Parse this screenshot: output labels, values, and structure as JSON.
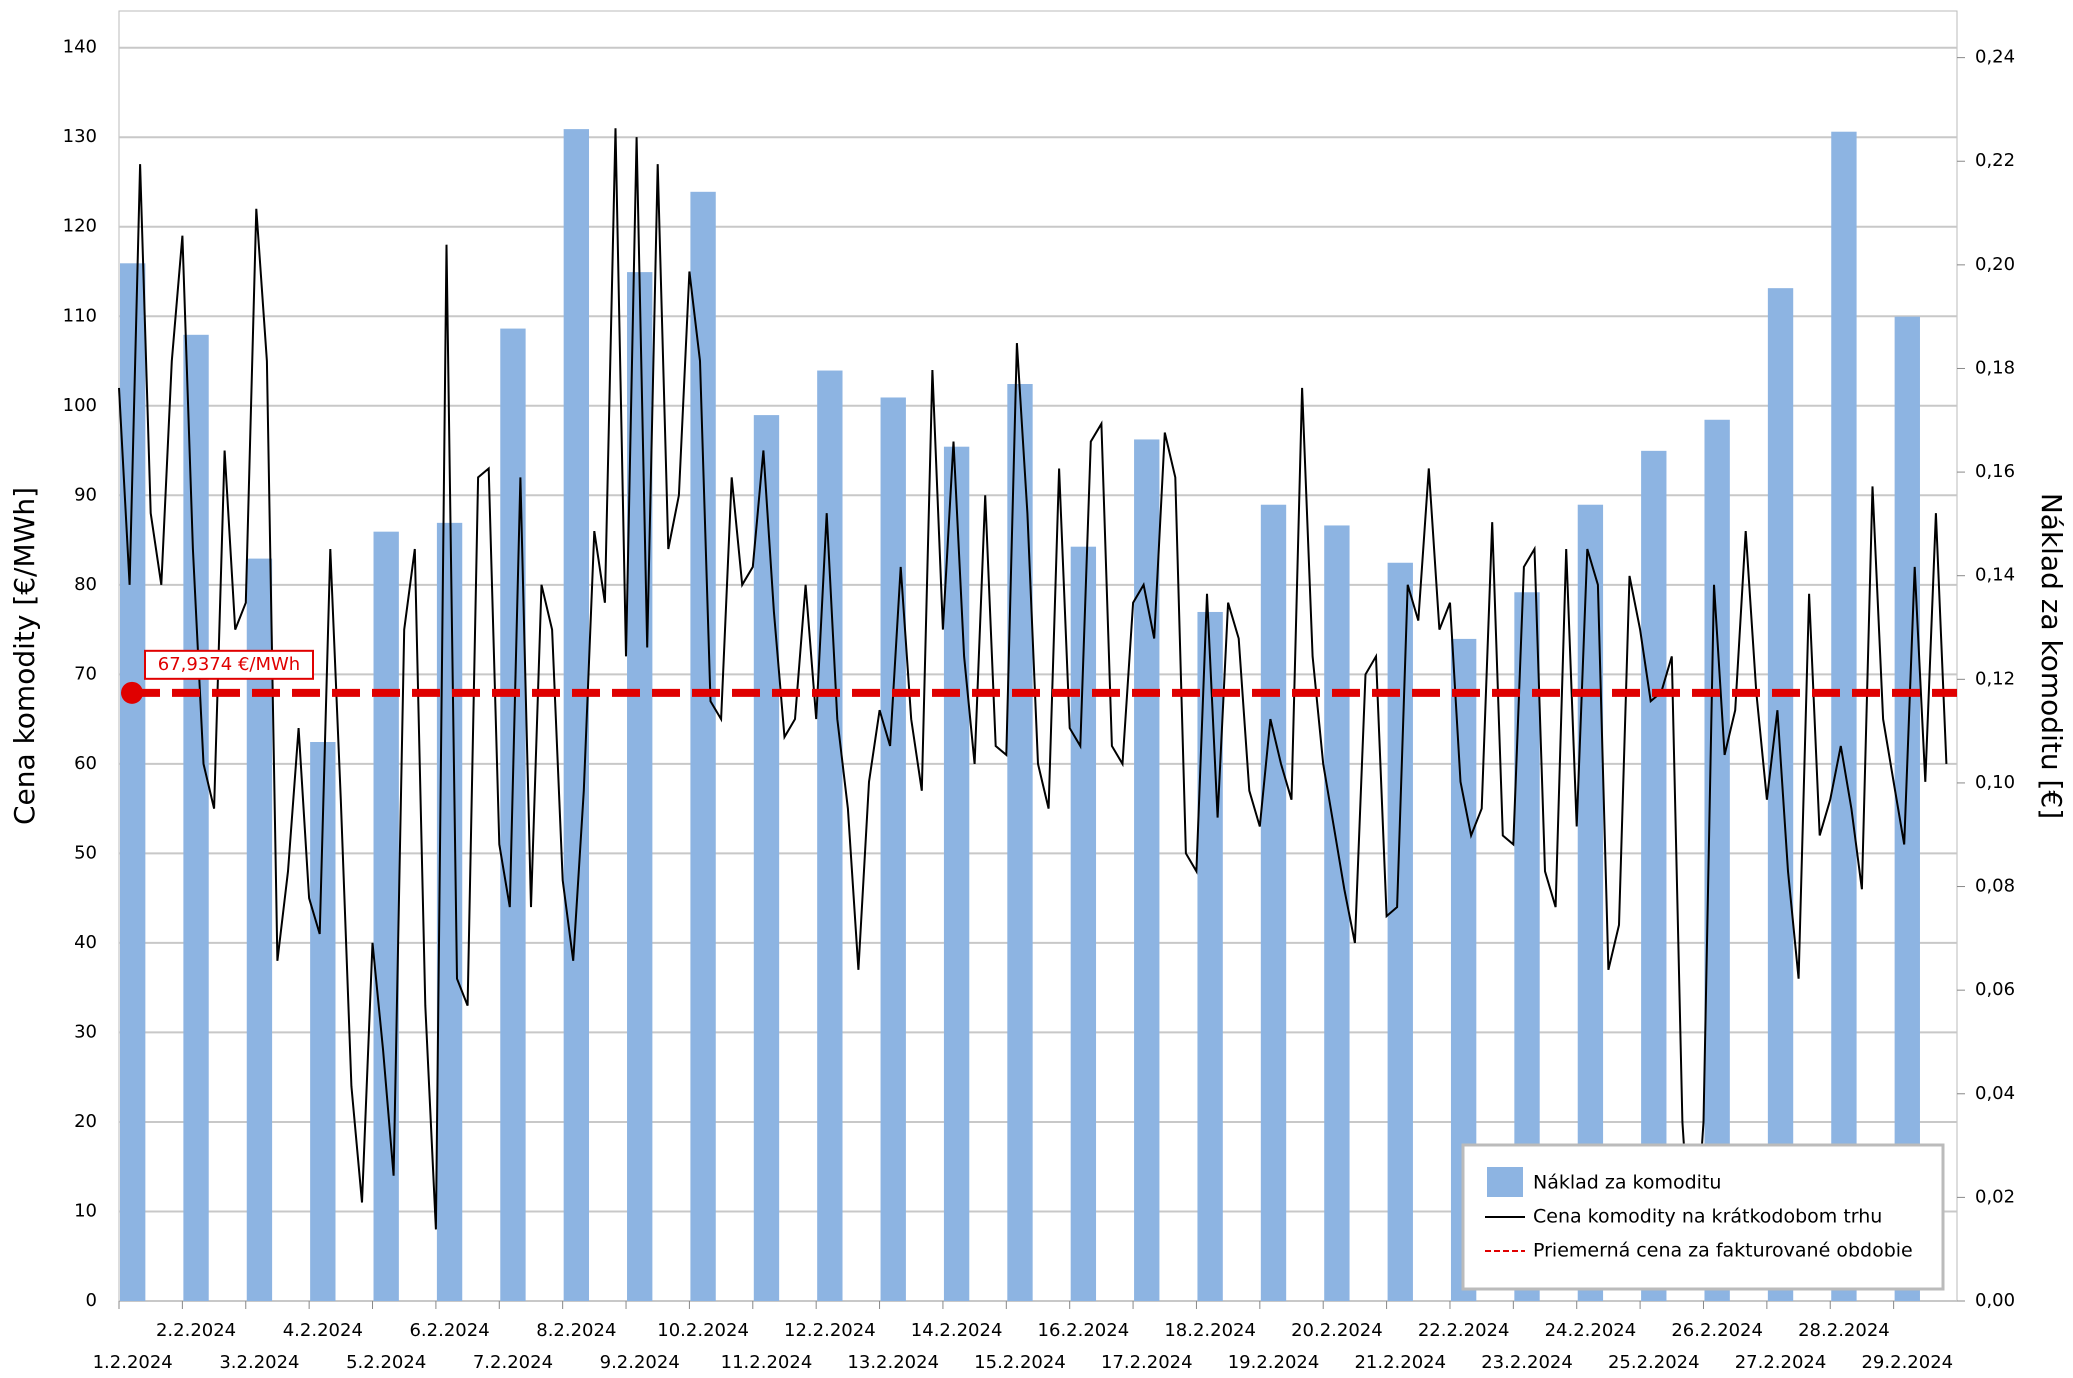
{
  "chart_data": {
    "type": "bar",
    "y_label": "Cena komodity [€/MWh]",
    "y2_label": "Náklad za komoditu [€]",
    "categories": [
      "1.2.2024",
      "2.2.2024",
      "3.2.2024",
      "4.2.2024",
      "5.2.2024",
      "6.2.2024",
      "7.2.2024",
      "8.2.2024",
      "9.2.2024",
      "10.2.2024",
      "11.2.2024",
      "12.2.2024",
      "13.2.2024",
      "14.2.2024",
      "15.2.2024",
      "16.2.2024",
      "17.2.2024",
      "18.2.2024",
      "19.2.2024",
      "20.2.2024",
      "21.2.2024",
      "22.2.2024",
      "23.2.2024",
      "24.2.2024",
      "25.2.2024",
      "26.2.2024",
      "27.2.2024",
      "28.2.2024",
      "29.2.2024"
    ],
    "ylim": [
      0,
      144.1
    ],
    "yticks": [
      0,
      10,
      20,
      30,
      40,
      50,
      60,
      70,
      80,
      90,
      100,
      110,
      120,
      130,
      140
    ],
    "y2lim": [
      0,
      0.249
    ],
    "y2ticks": [
      {
        "value": 0,
        "label": "0,00"
      },
      {
        "value": 0.02,
        "label": "0,02"
      },
      {
        "value": 0.04,
        "label": "0,04"
      },
      {
        "value": 0.06,
        "label": "0,06"
      },
      {
        "value": 0.08,
        "label": "0,08"
      },
      {
        "value": 0.1,
        "label": "0,10"
      },
      {
        "value": 0.12,
        "label": "0,12"
      },
      {
        "value": 0.14,
        "label": "0,14"
      },
      {
        "value": 0.16,
        "label": "0,16"
      },
      {
        "value": 0.18,
        "label": "0,18"
      },
      {
        "value": 0.2,
        "label": "0,20"
      },
      {
        "value": 0.22,
        "label": "0,22"
      },
      {
        "value": 0.24,
        "label": "0,24"
      }
    ],
    "grid": true,
    "legend": "bottom-right",
    "series": [
      {
        "name": "Náklad za komoditu",
        "color": "#8db4e2",
        "axis": "y2",
        "values": [
          0.2003,
          0.1865,
          0.1433,
          0.1079,
          0.1485,
          0.1502,
          0.1877,
          0.2262,
          0.1986,
          0.2141,
          0.171,
          0.1796,
          0.1744,
          0.1649,
          0.177,
          0.1456,
          0.1663,
          0.133,
          0.1537,
          0.1497,
          0.1425,
          0.1278,
          0.1368,
          0.1537,
          0.1641,
          0.1701,
          0.1955,
          0.2257,
          0.19
        ]
      },
      {
        "name": "Cena komodity na krátkodobom trhu",
        "color": "#000000",
        "type": "line",
        "values": [
          [
            102,
            80,
            127,
            88,
            80,
            105
          ],
          [
            119,
            84,
            60,
            55,
            95,
            75
          ],
          [
            78,
            122,
            105,
            38,
            48,
            64
          ],
          [
            45,
            41,
            84,
            56,
            24,
            11
          ],
          [
            40,
            28,
            14,
            75,
            84,
            33
          ],
          [
            8,
            118,
            36,
            33,
            92,
            93
          ],
          [
            51,
            44,
            92,
            44,
            80,
            75
          ],
          [
            47,
            38,
            57,
            86,
            78,
            131
          ],
          [
            72,
            130,
            73,
            127,
            84,
            90
          ],
          [
            115,
            105,
            67,
            65,
            92,
            80
          ],
          [
            82,
            95,
            77,
            63,
            65,
            80
          ],
          [
            65,
            88,
            65,
            55,
            37,
            58
          ],
          [
            66,
            62,
            82,
            65,
            57,
            104
          ],
          [
            75,
            96,
            72,
            60,
            90,
            62
          ],
          [
            61,
            107,
            88,
            60,
            55,
            93
          ],
          [
            64,
            62,
            96,
            98,
            62,
            60
          ],
          [
            78,
            80,
            74,
            97,
            92,
            50
          ],
          [
            48,
            79,
            54,
            78,
            74,
            57
          ],
          [
            53,
            65,
            60,
            56,
            102,
            72
          ],
          [
            60,
            53,
            46,
            40,
            70,
            72
          ],
          [
            43,
            44,
            80,
            76,
            93,
            75
          ],
          [
            78,
            58,
            52,
            55,
            87,
            52
          ],
          [
            51,
            82,
            84,
            48,
            44,
            84
          ],
          [
            53,
            84,
            80,
            37,
            42,
            81
          ],
          [
            75,
            67,
            68,
            72,
            20,
            2
          ],
          [
            20,
            80,
            61,
            66,
            86,
            68
          ],
          [
            56,
            66,
            48,
            36,
            79,
            52
          ],
          [
            56,
            62,
            55,
            46,
            91,
            65
          ],
          [
            58,
            51,
            82,
            58,
            88,
            60
          ]
        ]
      }
    ],
    "average": {
      "name": "Priemerná cena za fakturované obdobie",
      "color": "#e00000",
      "value": 67.9374,
      "value_label": "67,9374 €/MWh"
    }
  }
}
